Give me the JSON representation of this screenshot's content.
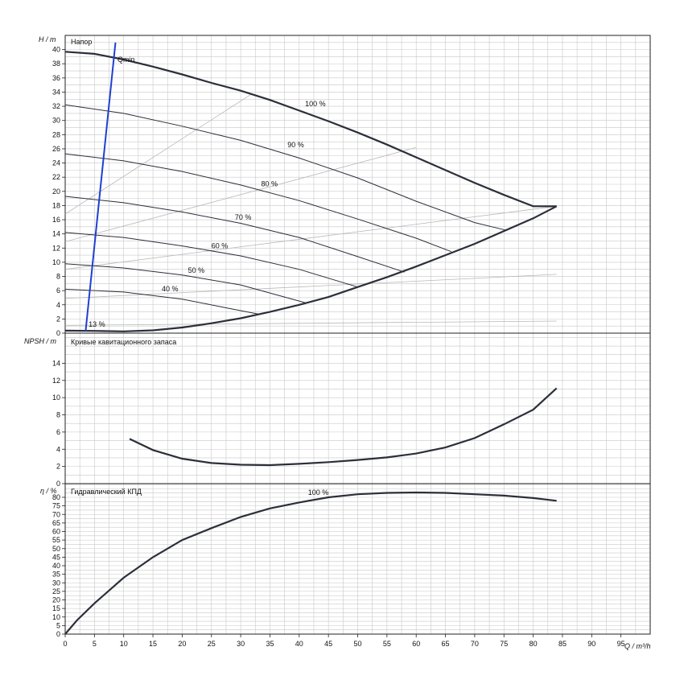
{
  "chart_data": [
    {
      "type": "line",
      "title": "Напор",
      "ylabel": "H / m",
      "xlim": [
        0,
        100
      ],
      "ylim": [
        0,
        42
      ],
      "yticks": [
        0,
        2,
        4,
        6,
        8,
        10,
        12,
        14,
        16,
        18,
        20,
        22,
        24,
        26,
        28,
        30,
        32,
        34,
        36,
        38,
        40
      ],
      "grid": true,
      "qmin_label": "Qmin",
      "qmin_line": [
        [
          3.5,
          0.3
        ],
        [
          8.6,
          41
        ]
      ],
      "envelope": [
        [
          0,
          39.7
        ],
        [
          5,
          39.4
        ],
        [
          10,
          38.6
        ],
        [
          15,
          37.6
        ],
        [
          20,
          36.5
        ],
        [
          25,
          35.3
        ],
        [
          30,
          34.2
        ],
        [
          35,
          32.9
        ],
        [
          40,
          31.4
        ],
        [
          45,
          29.9
        ],
        [
          50,
          28.3
        ],
        [
          55,
          26.6
        ],
        [
          60,
          24.8
        ],
        [
          65,
          23.0
        ],
        [
          70,
          21.2
        ],
        [
          75,
          19.5
        ],
        [
          80,
          17.9
        ],
        [
          84,
          17.9
        ]
      ],
      "min_curve": [
        [
          0,
          0.35
        ],
        [
          5,
          0.32
        ],
        [
          10,
          0.25
        ],
        [
          15,
          0.4
        ],
        [
          20,
          0.8
        ],
        [
          25,
          1.4
        ],
        [
          30,
          2.1
        ],
        [
          35,
          3.0
        ],
        [
          40,
          4.0
        ],
        [
          45,
          5.1
        ],
        [
          50,
          6.5
        ],
        [
          55,
          7.9
        ],
        [
          60,
          9.4
        ],
        [
          65,
          11.0
        ],
        [
          70,
          12.6
        ],
        [
          75,
          14.4
        ],
        [
          80,
          16.2
        ],
        [
          84,
          17.9
        ]
      ],
      "series": [
        {
          "name": "100 %",
          "label_at": [
            41,
            32
          ],
          "values": []
        },
        {
          "name": "90 %",
          "label_at": [
            38,
            26.2
          ],
          "points": [
            [
              0,
              32.2
            ],
            [
              10,
              31
            ],
            [
              20,
              29.2
            ],
            [
              30,
              27.2
            ],
            [
              40,
              24.7
            ],
            [
              50,
              21.9
            ],
            [
              60,
              18.6
            ],
            [
              70,
              15.6
            ],
            [
              75.5,
              14.5
            ]
          ]
        },
        {
          "name": "80 %",
          "label_at": [
            33.5,
            20.7
          ],
          "points": [
            [
              0,
              25.3
            ],
            [
              10,
              24.3
            ],
            [
              20,
              22.8
            ],
            [
              30,
              20.9
            ],
            [
              40,
              18.7
            ],
            [
              50,
              16.1
            ],
            [
              60,
              13.4
            ],
            [
              66,
              11.5
            ]
          ]
        },
        {
          "name": "70 %",
          "label_at": [
            29,
            16
          ],
          "points": [
            [
              0,
              19.3
            ],
            [
              10,
              18.4
            ],
            [
              20,
              17.1
            ],
            [
              30,
              15.5
            ],
            [
              40,
              13.5
            ],
            [
              50,
              10.8
            ],
            [
              58,
              8.6
            ]
          ]
        },
        {
          "name": "60 %",
          "label_at": [
            25,
            12
          ],
          "points": [
            [
              0,
              14.2
            ],
            [
              10,
              13.5
            ],
            [
              20,
              12.3
            ],
            [
              30,
              10.9
            ],
            [
              40,
              9.0
            ],
            [
              50,
              6.5
            ]
          ]
        },
        {
          "name": "50 %",
          "label_at": [
            21,
            8.5
          ],
          "points": [
            [
              0,
              9.8
            ],
            [
              10,
              9.2
            ],
            [
              20,
              8.2
            ],
            [
              30,
              6.8
            ],
            [
              37.5,
              5.1
            ],
            [
              41,
              4.3
            ]
          ]
        },
        {
          "name": "40 %",
          "label_at": [
            16.5,
            5.9
          ],
          "points": [
            [
              0,
              6.2
            ],
            [
              10,
              5.8
            ],
            [
              20,
              4.8
            ],
            [
              28,
              3.5
            ],
            [
              33,
              2.7
            ]
          ]
        },
        {
          "name": "13 %",
          "label_at": [
            4,
            0.9
          ],
          "points": []
        }
      ],
      "grey_lines": [
        [
          [
            0,
            16.8
          ],
          [
            32,
            33.8
          ]
        ],
        [
          [
            0,
            12.9
          ],
          [
            60,
            26.2
          ]
        ],
        [
          [
            0,
            9.0
          ],
          [
            84,
            17.9
          ]
        ],
        [
          [
            0,
            4.9
          ],
          [
            84,
            8.3
          ]
        ],
        [
          [
            0,
            1.1
          ],
          [
            84,
            1.7
          ]
        ]
      ]
    },
    {
      "type": "line",
      "title": "Кривые кавитационного запаса",
      "ylabel": "NPSH / m",
      "xlim": [
        0,
        100
      ],
      "ylim": [
        0,
        17.5
      ],
      "yticks": [
        0,
        2,
        4,
        6,
        8,
        10,
        12,
        14
      ],
      "grid": true,
      "series": [
        {
          "points": [
            [
              11,
              5.2
            ],
            [
              15,
              3.9
            ],
            [
              20,
              2.9
            ],
            [
              25,
              2.4
            ],
            [
              30,
              2.2
            ],
            [
              35,
              2.15
            ],
            [
              40,
              2.3
            ],
            [
              45,
              2.5
            ],
            [
              50,
              2.75
            ],
            [
              55,
              3.05
            ],
            [
              60,
              3.5
            ],
            [
              65,
              4.2
            ],
            [
              70,
              5.3
            ],
            [
              75,
              6.9
            ],
            [
              80,
              8.6
            ],
            [
              84,
              11.1
            ]
          ]
        }
      ]
    },
    {
      "type": "line",
      "title": "Гидравлический КПД",
      "ylabel": "η / %",
      "xlim": [
        0,
        100
      ],
      "ylim": [
        0,
        88
      ],
      "yticks": [
        0,
        5,
        10,
        15,
        20,
        25,
        30,
        35,
        40,
        45,
        50,
        55,
        60,
        65,
        70,
        75,
        80
      ],
      "grid": true,
      "xlabel": "Q / m³/h",
      "xticks": [
        0,
        5,
        10,
        15,
        20,
        25,
        30,
        35,
        40,
        45,
        50,
        55,
        60,
        65,
        70,
        75,
        80,
        85,
        90,
        95
      ],
      "series": [
        {
          "name": "100 %",
          "label_at": [
            41.5,
            81.5
          ],
          "points": [
            [
              0,
              0
            ],
            [
              2,
              8
            ],
            [
              5,
              18
            ],
            [
              10,
              33
            ],
            [
              15,
              45
            ],
            [
              20,
              55
            ],
            [
              25,
              62
            ],
            [
              30,
              68.5
            ],
            [
              35,
              73.5
            ],
            [
              40,
              77
            ],
            [
              45,
              80
            ],
            [
              50,
              81.8
            ],
            [
              55,
              82.6
            ],
            [
              60,
              82.8
            ],
            [
              65,
              82.6
            ],
            [
              70,
              81.8
            ],
            [
              75,
              81
            ],
            [
              80,
              79.6
            ],
            [
              84,
              78
            ]
          ]
        }
      ]
    }
  ]
}
